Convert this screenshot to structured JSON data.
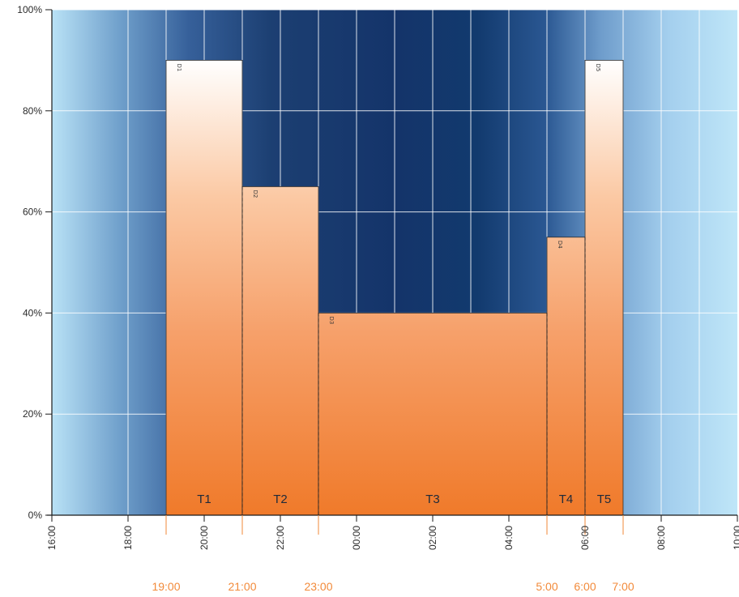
{
  "chart_data": {
    "type": "bar",
    "x_range_hours": [
      16,
      34
    ],
    "ylim": [
      0,
      100
    ],
    "y_ticks": [
      {
        "value": 0,
        "label": "0%"
      },
      {
        "value": 20,
        "label": "20%"
      },
      {
        "value": 40,
        "label": "40%"
      },
      {
        "value": 60,
        "label": "60%"
      },
      {
        "value": 80,
        "label": "80%"
      },
      {
        "value": 100,
        "label": "100%"
      }
    ],
    "x_ticks": [
      {
        "value": 16,
        "label": "16:00"
      },
      {
        "value": 18,
        "label": "18:00"
      },
      {
        "value": 20,
        "label": "20:00"
      },
      {
        "value": 22,
        "label": "22:00"
      },
      {
        "value": 24,
        "label": "00:00"
      },
      {
        "value": 26,
        "label": "02:00"
      },
      {
        "value": 28,
        "label": "04:00"
      },
      {
        "value": 30,
        "label": "06:00"
      },
      {
        "value": 32,
        "label": "08:00"
      },
      {
        "value": 34,
        "label": "10:00"
      }
    ],
    "event_times": [
      {
        "value": 19,
        "label": "19:00"
      },
      {
        "value": 21,
        "label": "21:00"
      },
      {
        "value": 23,
        "label": "23:00"
      },
      {
        "value": 29,
        "label": "5:00"
      },
      {
        "value": 30,
        "label": "6:00"
      },
      {
        "value": 31,
        "label": "7:00"
      }
    ],
    "segments": [
      {
        "name": "T1",
        "dim_label": "D1",
        "start": 19,
        "end": 21,
        "value": 90
      },
      {
        "name": "T2",
        "dim_label": "D2",
        "start": 21,
        "end": 23,
        "value": 65
      },
      {
        "name": "T3",
        "dim_label": "D3",
        "start": 23,
        "end": 29,
        "value": 40
      },
      {
        "name": "T4",
        "dim_label": "D4",
        "start": 29,
        "end": 30,
        "value": 55
      },
      {
        "name": "T5",
        "dim_label": "D5",
        "start": 30,
        "end": 31,
        "value": 90
      }
    ],
    "grid": true,
    "colors": {
      "sky_edge": "#b9e2f6",
      "sky_night": "#123a6e",
      "bar_top": "#ffffff",
      "bar_bottom": "#f07a2a",
      "event_text": "#f28a3a"
    }
  }
}
